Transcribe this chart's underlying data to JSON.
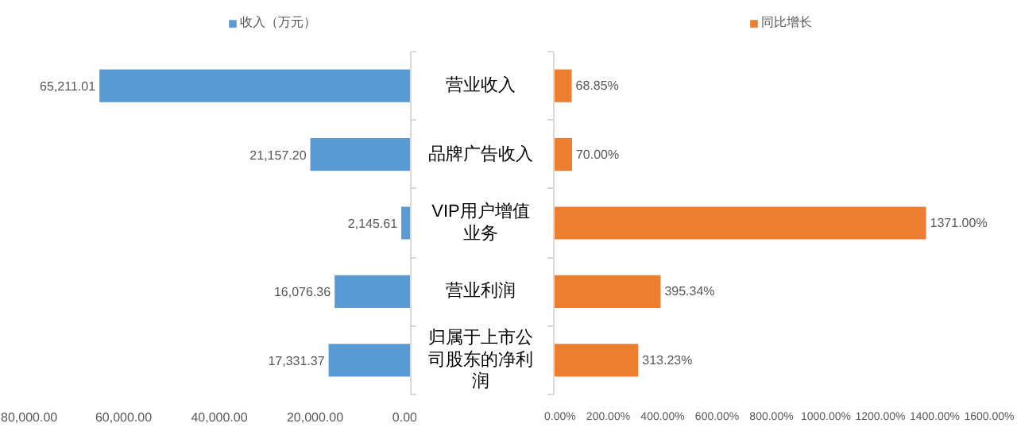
{
  "chart_data": [
    {
      "type": "bar",
      "orientation": "horizontal",
      "categories": [
        "营业收入",
        "品牌广告收入",
        "VIP用户增值业务",
        "营业利润",
        "归属于上市公司股东的净利润"
      ],
      "series": [
        {
          "name": "收入（万元）",
          "color": "#5b9bd5",
          "values": [
            65211.01,
            21157.2,
            2145.61,
            16076.36,
            17331.37
          ],
          "value_labels": [
            "65,211.01",
            "21,157.20",
            "2,145.61",
            "16,076.36",
            "17,331.37"
          ]
        }
      ],
      "xlim": [
        80000,
        0
      ],
      "xticks": [
        {
          "value": 80000,
          "label": "80,000.00"
        },
        {
          "value": 60000,
          "label": "60,000.00"
        },
        {
          "value": 40000,
          "label": "40,000.00"
        },
        {
          "value": 20000,
          "label": "20,000.00"
        },
        {
          "value": 0,
          "label": "0.00"
        }
      ],
      "legend": "top",
      "grid": false
    },
    {
      "type": "bar",
      "orientation": "horizontal",
      "categories": [
        null,
        null,
        null,
        null,
        null
      ],
      "series": [
        {
          "name": "同比增长",
          "color": "#ed7d31",
          "values": [
            68.85,
            70.0,
            1371.0,
            395.34,
            313.23
          ],
          "value_labels": [
            "68.85%",
            "70.00%",
            "1371.00%",
            "395.34%",
            "313.23%"
          ]
        }
      ],
      "xlim": [
        0,
        1600
      ],
      "xticks": [
        {
          "value": 0,
          "label": "0.00%"
        },
        {
          "value": 200,
          "label": "200.00%"
        },
        {
          "value": 400,
          "label": "400.00%"
        },
        {
          "value": 600,
          "label": "600.00%"
        },
        {
          "value": 800,
          "label": "800.00%"
        },
        {
          "value": 1000,
          "label": "1000.00%"
        },
        {
          "value": 1200,
          "label": "1200.00%"
        },
        {
          "value": 1400,
          "label": "1400.00%"
        },
        {
          "value": 1600,
          "label": "1600.00%"
        }
      ],
      "legend": "top",
      "grid": false
    }
  ]
}
